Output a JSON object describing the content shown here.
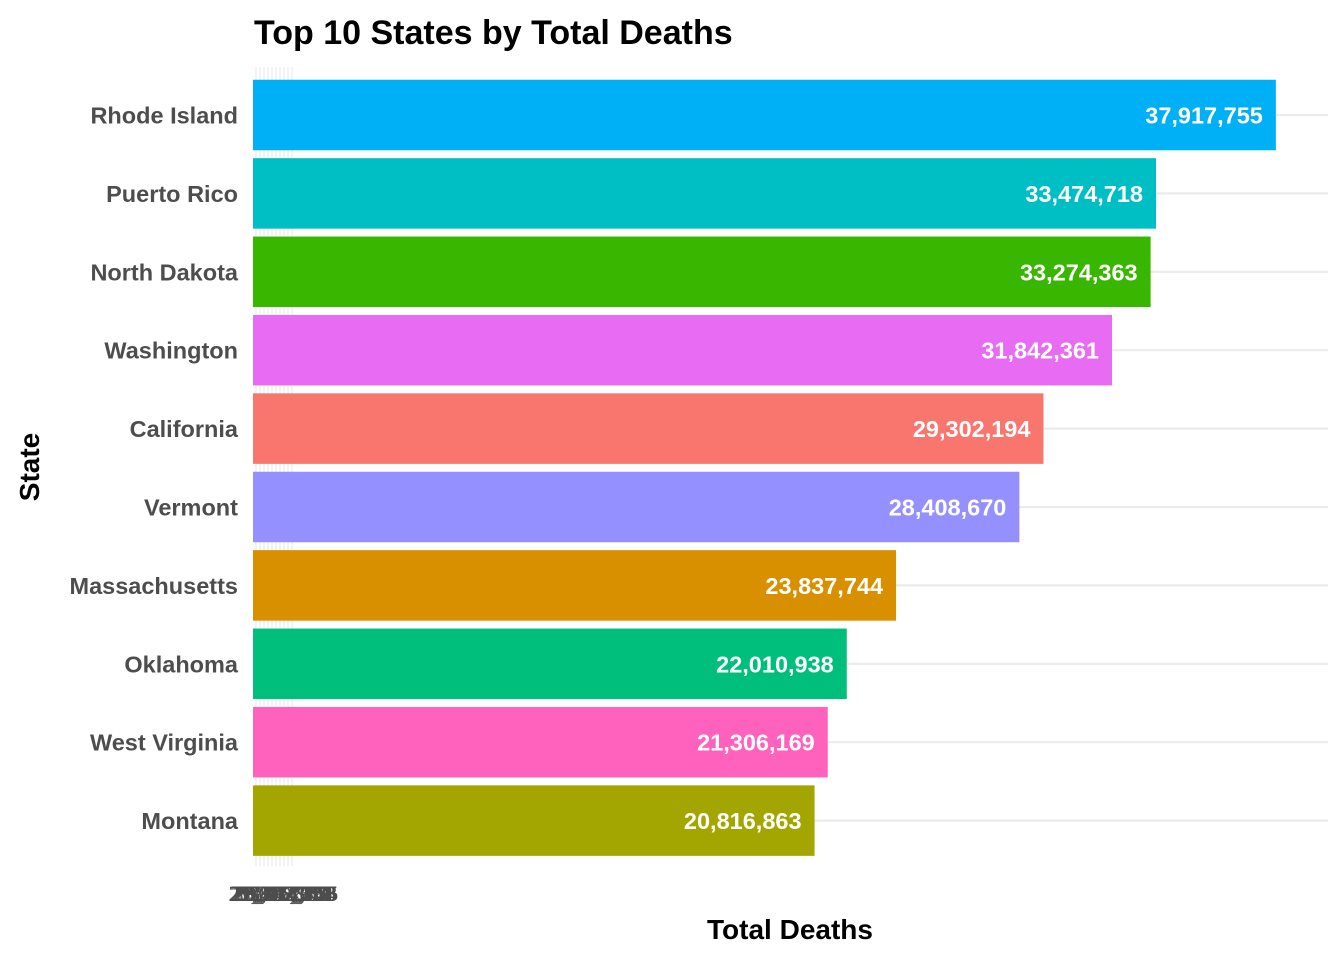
{
  "chart_data": {
    "type": "bar",
    "orientation": "horizontal",
    "title": "Top 10 States by Total Deaths",
    "xlabel": "Total Deaths",
    "ylabel": "State",
    "xlim": [
      0,
      39850000
    ],
    "grid": true,
    "legend": "none",
    "x_tick_labels_note": "overlapping, illegible",
    "x_tick_labels": [
      "20,816,863",
      "21,306,169",
      "22,010,938",
      "23,837,744",
      "28,408,670",
      "29,302,194",
      "31,842,361",
      "33,274,363",
      "33,474,718",
      "37,917,755"
    ],
    "categories": [
      "Rhode Island",
      "Puerto Rico",
      "North Dakota",
      "Washington",
      "California",
      "Vermont",
      "Massachusetts",
      "Oklahoma",
      "West Virginia",
      "Montana"
    ],
    "values": [
      37917755,
      33474718,
      33274363,
      31842361,
      29302194,
      28408670,
      23837744,
      22010938,
      21306169,
      20816863
    ],
    "value_labels": [
      "37,917,755",
      "33,474,718",
      "33,274,363",
      "31,842,361",
      "29,302,194",
      "28,408,670",
      "23,837,744",
      "22,010,938",
      "21,306,169",
      "20,816,863"
    ],
    "colors": [
      "#00B0F6",
      "#00BFC4",
      "#39B600",
      "#E76BF3",
      "#F8766D",
      "#9590FF",
      "#D89000",
      "#00BF7D",
      "#FF62BC",
      "#A3A500"
    ]
  }
}
